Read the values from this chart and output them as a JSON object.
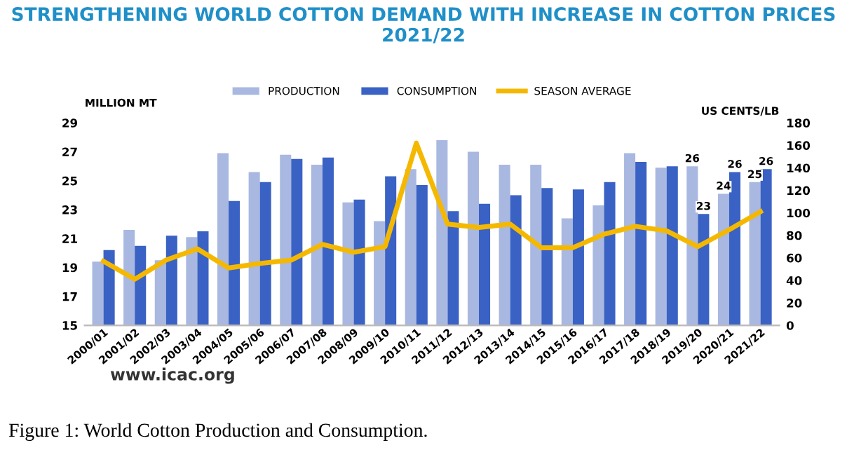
{
  "chart_data": {
    "type": "bar",
    "title": "STRENGTHENING WORLD COTTON DEMAND WITH INCREASE IN COTTON PRICES\n2021/22",
    "ylabel": "MILLION MT",
    "y2label": "US CENTS/LB",
    "categories": [
      "2000/01",
      "2001/02",
      "2002/03",
      "2003/04",
      "2004/05",
      "2005/06",
      "2006/07",
      "2007/08",
      "2008/09",
      "2009/10",
      "2010/11",
      "2011/12",
      "2012/13",
      "2013/14",
      "2014/15",
      "2015/16",
      "2016/17",
      "2017/18",
      "2018/19",
      "2019/20",
      "2020/21",
      "2021/22"
    ],
    "series": [
      {
        "name": "PRODUCTION",
        "color": "#a9b8e0",
        "values": [
          19.4,
          21.6,
          19.5,
          21.1,
          26.9,
          25.6,
          26.8,
          26.1,
          23.5,
          22.2,
          25.8,
          27.8,
          27.0,
          26.1,
          26.1,
          22.4,
          23.3,
          26.9,
          25.9,
          26.0,
          24.1,
          24.9
        ],
        "value_labels": [
          null,
          null,
          null,
          null,
          null,
          null,
          null,
          null,
          null,
          null,
          null,
          null,
          null,
          null,
          null,
          null,
          null,
          null,
          null,
          "26",
          "24",
          "25"
        ]
      },
      {
        "name": "CONSUMPTION",
        "color": "#3a62c4",
        "values": [
          20.2,
          20.5,
          21.2,
          21.5,
          23.6,
          24.9,
          26.5,
          26.6,
          23.7,
          25.3,
          24.7,
          22.9,
          23.4,
          24.0,
          24.5,
          24.4,
          24.9,
          26.3,
          26.0,
          22.7,
          25.6,
          25.8
        ],
        "value_labels": [
          null,
          null,
          null,
          null,
          null,
          null,
          null,
          null,
          null,
          null,
          null,
          null,
          null,
          null,
          null,
          null,
          null,
          null,
          null,
          "23",
          "26",
          "26"
        ]
      },
      {
        "name": "SEASON AVERAGE",
        "type": "line",
        "axis": "y2",
        "color": "#f5b800",
        "values": [
          57,
          41,
          58,
          68,
          51,
          55,
          58,
          72,
          65,
          70,
          162,
          90,
          87,
          90,
          69,
          69,
          81,
          88,
          84,
          70,
          85,
          101
        ]
      }
    ],
    "ylim": [
      15,
      29
    ],
    "yticks": [
      15,
      17,
      19,
      21,
      23,
      25,
      27,
      29
    ],
    "y2lim": [
      0,
      180
    ],
    "y2ticks": [
      0,
      20,
      40,
      60,
      80,
      100,
      120,
      140,
      160,
      180
    ],
    "grid": false,
    "legend": "top",
    "marker": "none",
    "line_style": "solid",
    "annotations": [
      "www.icac.org",
      "Figure 1: World Cotton Production and Consumption."
    ]
  }
}
